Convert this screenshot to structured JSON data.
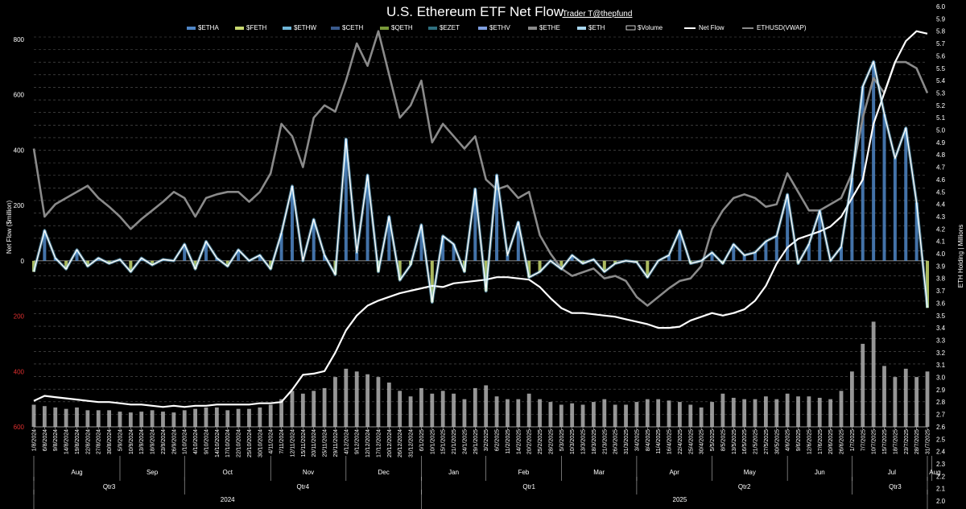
{
  "chart_data": {
    "type": "bar",
    "title": "U.S. Ethereum ETF Net Flow",
    "credit": "Trader T@thepfund",
    "ylabel": "Net Flow ($million)",
    "y2label": "ETH Holding | Millions",
    "ylim": [
      -600,
      820
    ],
    "y2lim": [
      2.0,
      6.0
    ],
    "yticks": [
      {
        "v": 800,
        "label": "800",
        "neg": false
      },
      {
        "v": 600,
        "label": "600",
        "neg": false
      },
      {
        "v": 400,
        "label": "400",
        "neg": false
      },
      {
        "v": 200,
        "label": "200",
        "neg": false
      },
      {
        "v": 0,
        "label": "0",
        "neg": false
      },
      {
        "v": -200,
        "label": "200",
        "neg": true
      },
      {
        "v": -400,
        "label": "400",
        "neg": true
      },
      {
        "v": -600,
        "label": "600",
        "neg": true
      }
    ],
    "y2ticks": [
      "2.0",
      "2.1",
      "2.2",
      "2.3",
      "2.4",
      "2.5",
      "2.6",
      "2.7",
      "2.8",
      "2.9",
      "3.0",
      "3.1",
      "3.2",
      "3.3",
      "3.4",
      "3.5",
      "3.6",
      "3.7",
      "3.8",
      "3.9",
      "4.0",
      "4.1",
      "4.2",
      "4.3",
      "4.4",
      "4.5",
      "4.6",
      "4.7",
      "4.8",
      "4.9",
      "5.0",
      "5.1",
      "5.2",
      "5.3",
      "5.4",
      "5.5",
      "5.6",
      "5.7",
      "5.8",
      "5.9",
      "6.0"
    ],
    "legend": [
      {
        "name": "$ETHA",
        "color": "#4f86c6",
        "kind": "bar"
      },
      {
        "name": "$FETH",
        "color": "#c8d96f",
        "kind": "bar"
      },
      {
        "name": "$ETHW",
        "color": "#6fb6d8",
        "kind": "bar"
      },
      {
        "name": "$CETH",
        "color": "#3a5a8c",
        "kind": "bar"
      },
      {
        "name": "$QETH",
        "color": "#7a9a3a",
        "kind": "bar"
      },
      {
        "name": "$EZET",
        "color": "#2f6f7f",
        "kind": "bar"
      },
      {
        "name": "$ETHV",
        "color": "#7f9fdf",
        "kind": "bar"
      },
      {
        "name": "$ETHE",
        "color": "#8a8a8a",
        "kind": "bar"
      },
      {
        "name": "$ETH",
        "color": "#a9d8f0",
        "kind": "bar"
      },
      {
        "name": "$Volume",
        "color": "#000000",
        "kind": "box"
      },
      {
        "name": "Net Flow",
        "color": "#ffffff",
        "kind": "line"
      },
      {
        "name": "ETHUSD(VWAP)",
        "color": "#8a8a8a",
        "kind": "line"
      }
    ],
    "dates": [
      "1/8/2024",
      "6/8/2024",
      "9/8/2024",
      "14/8/2024",
      "19/8/2024",
      "22/8/2024",
      "27/8/2024",
      "30/8/2024",
      "5/9/2024",
      "10/9/2024",
      "13/9/2024",
      "18/9/2024",
      "23/9/2024",
      "26/9/2024",
      "1/10/2024",
      "4/10/2024",
      "9/10/2024",
      "14/10/2024",
      "17/10/2024",
      "22/10/2024",
      "25/10/2024",
      "30/10/2024",
      "4/11/2024",
      "7/11/2024",
      "12/11/2024",
      "15/11/2024",
      "20/11/2024",
      "25/11/2024",
      "29/11/2024",
      "4/12/2024",
      "9/12/2024",
      "12/12/2024",
      "17/12/2024",
      "20/12/2024",
      "26/12/2024",
      "31/12/2024",
      "6/1/2025",
      "10/1/2025",
      "15/1/2025",
      "21/1/2025",
      "24/1/2025",
      "29/1/2025",
      "3/2/2025",
      "6/2/2025",
      "11/2/2025",
      "14/2/2025",
      "20/2/2025",
      "25/2/2025",
      "28/2/2025",
      "5/3/2025",
      "10/3/2025",
      "13/3/2025",
      "18/3/2025",
      "21/3/2025",
      "26/3/2025",
      "31/3/2025",
      "3/4/2025",
      "8/4/2025",
      "11/4/2025",
      "16/4/2025",
      "22/4/2025",
      "25/4/2025",
      "30/4/2025",
      "5/5/2025",
      "8/5/2025",
      "13/5/2025",
      "16/5/2025",
      "21/5/2025",
      "27/5/2025",
      "30/5/2025",
      "4/6/2025",
      "9/6/2025",
      "12/6/2025",
      "17/6/2025",
      "20/6/2025",
      "26/6/2025",
      "1/7/2025",
      "7/7/2025",
      "10/7/2025",
      "15/7/2025",
      "18/7/2025",
      "23/7/2025",
      "28/7/2025",
      "31/7/2025"
    ],
    "months": [
      {
        "label": "Aug",
        "i0": 0,
        "i1": 8
      },
      {
        "label": "Sep",
        "i0": 8,
        "i1": 14
      },
      {
        "label": "Oct",
        "i0": 14,
        "i1": 22
      },
      {
        "label": "Nov",
        "i0": 22,
        "i1": 29
      },
      {
        "label": "Dec",
        "i0": 29,
        "i1": 36
      },
      {
        "label": "Jan",
        "i0": 36,
        "i1": 42
      },
      {
        "label": "Feb",
        "i0": 42,
        "i1": 49
      },
      {
        "label": "Mar",
        "i0": 49,
        "i1": 56
      },
      {
        "label": "Apr",
        "i0": 56,
        "i1": 63
      },
      {
        "label": "May",
        "i0": 63,
        "i1": 70
      },
      {
        "label": "Jun",
        "i0": 70,
        "i1": 76
      },
      {
        "label": "Jul",
        "i0": 76,
        "i1": 83.4
      },
      {
        "label": "Aug",
        "i0": 83.4,
        "i1": 84
      }
    ],
    "quarters": [
      {
        "label": "Qtr3",
        "i0": 0,
        "i1": 14
      },
      {
        "label": "Qtr4",
        "i0": 14,
        "i1": 36
      },
      {
        "label": "Qtr1",
        "i0": 36,
        "i1": 56
      },
      {
        "label": "Qtr2",
        "i0": 56,
        "i1": 76
      },
      {
        "label": "Qtr3",
        "i0": 76,
        "i1": 84
      }
    ],
    "years": [
      {
        "label": "2024",
        "i0": 0,
        "i1": 36
      },
      {
        "label": "2025",
        "i0": 36,
        "i1": 84
      }
    ],
    "series": [
      {
        "name": "Net Flow",
        "values": [
          -40,
          110,
          10,
          -30,
          40,
          -20,
          10,
          -10,
          5,
          -40,
          10,
          -15,
          5,
          0,
          60,
          -30,
          70,
          10,
          -20,
          40,
          0,
          20,
          -30,
          100,
          270,
          0,
          150,
          20,
          -50,
          440,
          30,
          310,
          -40,
          160,
          -70,
          -15,
          130,
          -150,
          90,
          60,
          -40,
          260,
          -110,
          310,
          20,
          140,
          -60,
          -40,
          0,
          -30,
          20,
          -10,
          5,
          -40,
          -10,
          0,
          -5,
          -60,
          0,
          20,
          110,
          -10,
          0,
          30,
          -10,
          60,
          20,
          30,
          70,
          90,
          240,
          -10,
          60,
          180,
          0,
          50,
          300,
          630,
          720,
          530,
          370,
          480,
          210,
          -170
        ]
      },
      {
        "name": "ETH Holding",
        "values": [
          2.81,
          2.85,
          2.84,
          2.83,
          2.82,
          2.81,
          2.8,
          2.8,
          2.79,
          2.78,
          2.78,
          2.77,
          2.76,
          2.77,
          2.76,
          2.77,
          2.77,
          2.78,
          2.78,
          2.78,
          2.78,
          2.79,
          2.79,
          2.8,
          2.9,
          3.02,
          3.03,
          3.05,
          3.2,
          3.38,
          3.5,
          3.58,
          3.62,
          3.65,
          3.68,
          3.7,
          3.72,
          3.74,
          3.73,
          3.76,
          3.77,
          3.78,
          3.79,
          3.81,
          3.81,
          3.8,
          3.79,
          3.73,
          3.64,
          3.56,
          3.52,
          3.52,
          3.51,
          3.5,
          3.49,
          3.47,
          3.45,
          3.43,
          3.4,
          3.4,
          3.41,
          3.46,
          3.49,
          3.52,
          3.5,
          3.52,
          3.55,
          3.62,
          3.74,
          3.92,
          4.05,
          4.12,
          4.15,
          4.18,
          4.22,
          4.3,
          4.45,
          4.6,
          5.05,
          5.3,
          5.55,
          5.72,
          5.8,
          5.78
        ]
      },
      {
        "name": "ETHUSD(VWAP)",
        "values": [
          4.85,
          4.3,
          4.4,
          4.45,
          4.5,
          4.55,
          4.45,
          4.38,
          4.3,
          4.2,
          4.28,
          4.35,
          4.42,
          4.5,
          4.45,
          4.3,
          4.45,
          4.48,
          4.5,
          4.5,
          4.42,
          4.5,
          4.65,
          5.05,
          4.95,
          4.7,
          5.1,
          5.2,
          5.15,
          5.4,
          5.7,
          5.52,
          5.8,
          5.45,
          5.1,
          5.2,
          5.4,
          4.9,
          5.05,
          4.95,
          4.85,
          4.95,
          4.6,
          4.52,
          4.55,
          4.45,
          4.5,
          4.15,
          4.0,
          3.88,
          3.82,
          3.85,
          3.88,
          3.8,
          3.82,
          3.78,
          3.65,
          3.58,
          3.65,
          3.72,
          3.78,
          3.8,
          3.9,
          4.2,
          4.35,
          4.45,
          4.48,
          4.45,
          4.38,
          4.4,
          4.65,
          4.5,
          4.35,
          4.35,
          4.4,
          4.45,
          4.65,
          5.1,
          5.42,
          5.3,
          5.55,
          5.55,
          5.5,
          5.3
        ]
      },
      {
        "name": "$Volume",
        "values": [
          -520,
          -525,
          -530,
          -535,
          -530,
          -540,
          -540,
          -540,
          -545,
          -548,
          -545,
          -540,
          -545,
          -548,
          -540,
          -535,
          -530,
          -530,
          -540,
          -535,
          -535,
          -530,
          -520,
          -500,
          -470,
          -480,
          -470,
          -460,
          -420,
          -390,
          -400,
          -410,
          -420,
          -440,
          -470,
          -490,
          -460,
          -480,
          -470,
          -480,
          -500,
          -460,
          -450,
          -490,
          -500,
          -500,
          -480,
          -500,
          -510,
          -520,
          -515,
          -520,
          -510,
          -500,
          -520,
          -520,
          -510,
          -500,
          -500,
          -505,
          -510,
          -520,
          -530,
          -510,
          -480,
          -495,
          -500,
          -500,
          -490,
          -500,
          -480,
          -490,
          -490,
          -495,
          -500,
          -470,
          -400,
          -300,
          -220,
          -380,
          -420,
          -390,
          -420,
          -400
        ]
      }
    ]
  }
}
